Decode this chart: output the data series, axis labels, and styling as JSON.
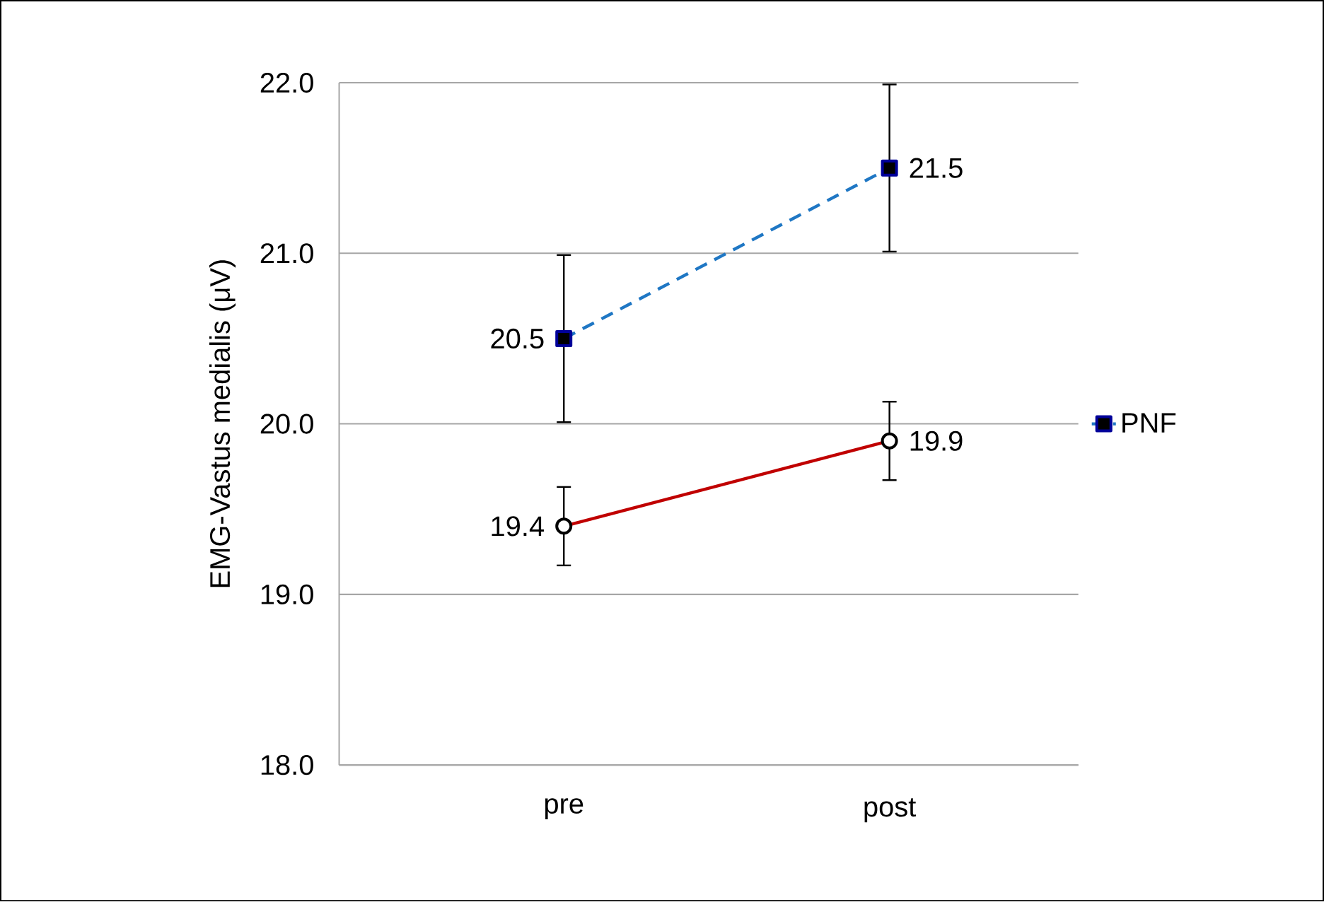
{
  "chart_data": {
    "type": "line",
    "ylabel": "EMG-Vastus medialis (μV)",
    "categories": [
      "pre",
      "post"
    ],
    "series": [
      {
        "name": "PNF",
        "color": "#1f77c4",
        "values": [
          20.5,
          21.5
        ],
        "errors": [
          0.49,
          0.49
        ],
        "value_labels": [
          "20.5",
          "21.5"
        ],
        "marker": "square",
        "line_style": "dashed"
      },
      {
        "color": "#c00000",
        "values": [
          19.4,
          19.9
        ],
        "errors": [
          0.23,
          0.23
        ],
        "value_labels": [
          "19.4",
          "19.9"
        ],
        "marker": "circle",
        "line_style": "solid"
      }
    ],
    "ylim": [
      18,
      22
    ],
    "yticks": [
      {
        "value": 18,
        "label": "18.0"
      },
      {
        "value": 19,
        "label": "19.0"
      },
      {
        "value": 20,
        "label": "20.0"
      },
      {
        "value": 21,
        "label": "21.0"
      },
      {
        "value": 22,
        "label": "22.0"
      }
    ],
    "grid": "y",
    "legend": "right"
  }
}
